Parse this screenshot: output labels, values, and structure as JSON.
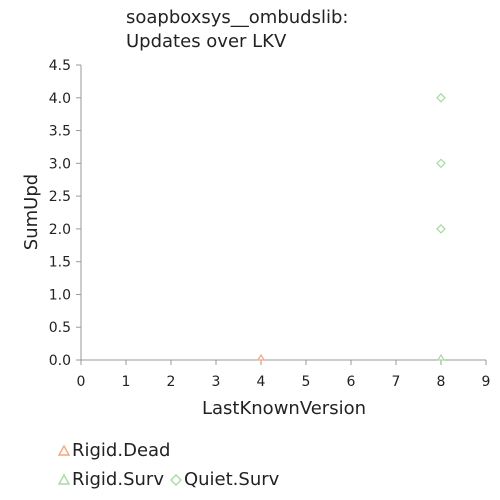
{
  "chart_data": {
    "type": "scatter",
    "title_lines": [
      "soapboxsys__ombudslib:",
      "Updates over LKV"
    ],
    "xlabel": "LastKnownVersion",
    "ylabel": "SumUpd",
    "xlim": [
      0,
      9
    ],
    "ylim": [
      0,
      4.5
    ],
    "x_ticks": [
      "0",
      "1",
      "2",
      "3",
      "4",
      "5",
      "6",
      "7",
      "8",
      "9"
    ],
    "x_tick_values": [
      0,
      1,
      2,
      3,
      4,
      5,
      6,
      7,
      8,
      9
    ],
    "y_ticks": [
      "0.0",
      "0.5",
      "1.0",
      "1.5",
      "2.0",
      "2.5",
      "3.0",
      "3.5",
      "4.0",
      "4.5"
    ],
    "y_tick_values": [
      0,
      0.5,
      1,
      1.5,
      2,
      2.5,
      3,
      3.5,
      4,
      4.5
    ],
    "grid": false,
    "legend_position": "bottom-left",
    "series": [
      {
        "name": "Rigid.Dead",
        "marker": "triangle",
        "color": "#f4a582",
        "points": [
          [
            4,
            0
          ]
        ]
      },
      {
        "name": "Rigid.Surv",
        "marker": "triangle",
        "color": "#a6dba0",
        "points": [
          [
            8,
            0
          ]
        ]
      },
      {
        "name": "Quiet.Surv",
        "marker": "diamond",
        "color": "#a6dba0",
        "points": [
          [
            8,
            4
          ],
          [
            8,
            3
          ],
          [
            8,
            2
          ]
        ]
      }
    ]
  }
}
